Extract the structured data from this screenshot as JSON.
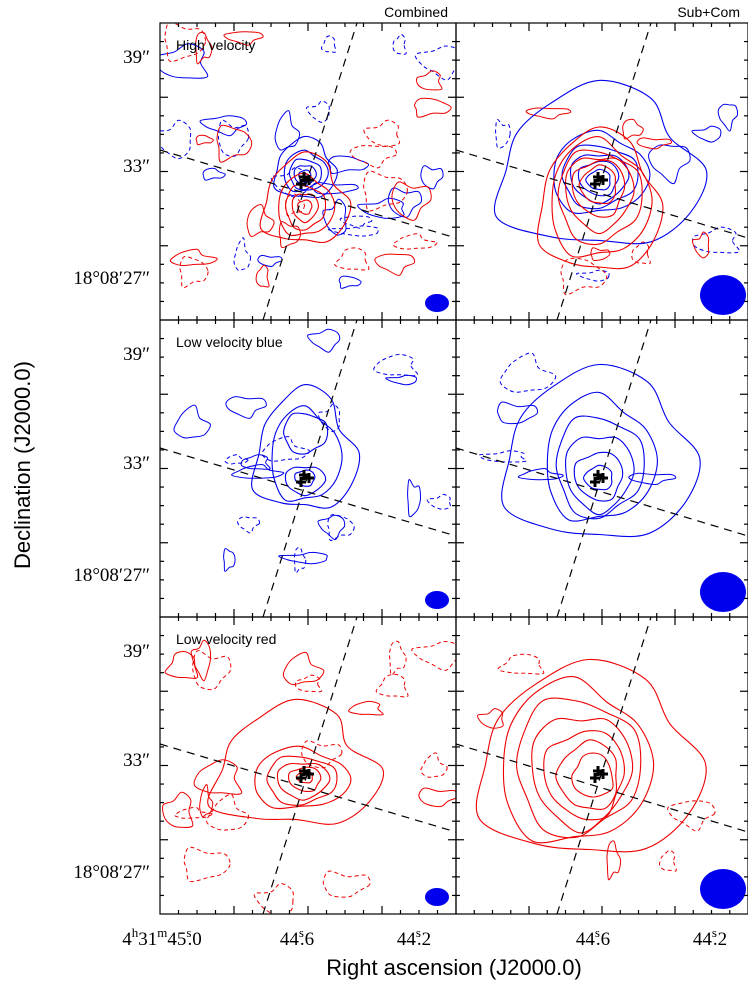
{
  "figure": {
    "column_titles": [
      "Combined",
      "Sub+Com"
    ],
    "row_labels": [
      "High velocity",
      "Low velocity blue",
      "Low velocity red"
    ],
    "xlabel": "Right ascension (J2000.0)",
    "ylabel": "Declination (J2000.0)"
  },
  "chart_data": {
    "type": "contour",
    "grid": [
      3,
      2
    ],
    "x_ticks": [
      {
        "main": "4",
        "sup1": "h",
        "mid": "31",
        "sup2": "m",
        "tail": "45",
        "sup3": "s",
        "dec": ".0",
        "value": 45.0
      },
      {
        "main": "44",
        "sup1": "s",
        "dec": ".6",
        "value": 44.6
      },
      {
        "main": "44",
        "sup1": "s",
        "dec": ".2",
        "value": 44.2
      }
    ],
    "y_ticks": [
      {
        "text": "39″",
        "value": 39
      },
      {
        "text": "33″",
        "value": 33
      },
      {
        "text": "18°08′27″",
        "value": 27
      }
    ],
    "colors": {
      "blue": "#0000ee",
      "red": "#ee0000",
      "dashed_lines": "#000000",
      "source": "#000000"
    },
    "panels": [
      {
        "row": 0,
        "col": 0,
        "label": "High velocity",
        "beam": "small"
      },
      {
        "row": 0,
        "col": 1,
        "label": "",
        "beam": "large"
      },
      {
        "row": 1,
        "col": 0,
        "label": "Low velocity blue",
        "beam": "small"
      },
      {
        "row": 1,
        "col": 1,
        "label": "",
        "beam": "large"
      },
      {
        "row": 2,
        "col": 0,
        "label": "Low velocity red",
        "beam": "small"
      },
      {
        "row": 2,
        "col": 1,
        "label": "",
        "beam": "large"
      }
    ]
  }
}
